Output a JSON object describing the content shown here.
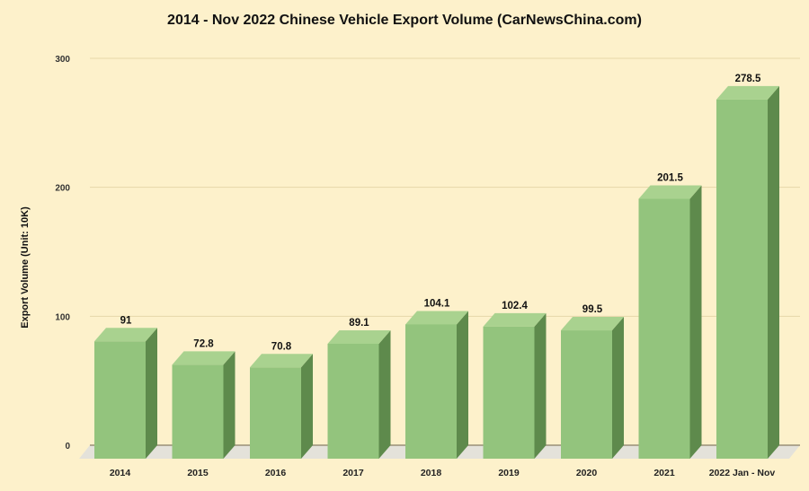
{
  "chart_data": {
    "type": "bar",
    "title": "2014 - Nov 2022 Chinese Vehicle Export Volume (CarNewsChina.com)",
    "xlabel": "",
    "ylabel": "Export Volume (Unit: 10K)",
    "categories": [
      "2014",
      "2015",
      "2016",
      "2017",
      "2018",
      "2019",
      "2020",
      "2021",
      "2022 Jan - Nov"
    ],
    "values": [
      91,
      72.8,
      70.8,
      89.1,
      104.1,
      102.4,
      99.5,
      201.5,
      278.5
    ],
    "data_labels": [
      "91",
      "72.8",
      "70.8",
      "89.1",
      "104.1",
      "102.4",
      "99.5",
      "201.5",
      "278.5"
    ],
    "ylim": [
      0,
      300
    ],
    "yticks": [
      "0",
      "100",
      "200",
      "300"
    ],
    "grid": true,
    "style": "3d-column",
    "colors": {
      "background": "#fdf1cb",
      "bar_front": "#93c47d",
      "bar_side": "#5e8a4c",
      "bar_top": "#a9d28f",
      "grid": "#e6d7aa",
      "floor": "#e4e2da"
    }
  }
}
